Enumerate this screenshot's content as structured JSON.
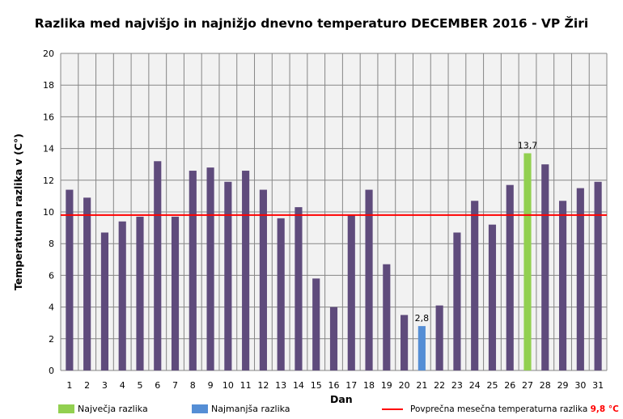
{
  "chart_data": {
    "type": "bar",
    "title": "Razlika med najvišjo in najnižjo dnevno temperaturo DECEMBER 2016 - VP Žiri",
    "xlabel": "Dan",
    "ylabel": "Temperaturna razlika v (C°)",
    "ylim": [
      0,
      20
    ],
    "yticks": [
      0,
      2,
      4,
      6,
      8,
      10,
      12,
      14,
      16,
      18,
      20
    ],
    "grid": true,
    "categories": [
      "1",
      "2",
      "3",
      "4",
      "5",
      "6",
      "7",
      "8",
      "9",
      "10",
      "11",
      "12",
      "13",
      "14",
      "15",
      "16",
      "17",
      "18",
      "19",
      "20",
      "21",
      "22",
      "23",
      "24",
      "25",
      "26",
      "27",
      "28",
      "29",
      "30",
      "31"
    ],
    "values": [
      11.4,
      10.9,
      8.7,
      9.4,
      9.7,
      13.2,
      9.7,
      12.6,
      12.8,
      11.9,
      12.6,
      11.4,
      9.6,
      10.3,
      5.8,
      4.0,
      9.8,
      11.4,
      6.7,
      3.5,
      2.8,
      4.1,
      8.7,
      10.7,
      9.2,
      11.7,
      13.7,
      13.0,
      10.7,
      11.5,
      11.9
    ],
    "max_index": 26,
    "min_index": 20,
    "max_label": "13,7",
    "min_label": "2,8",
    "average": 9.8,
    "colors": {
      "bar": "#5f4b7c",
      "max": "#92d050",
      "min": "#558ed5",
      "average": "#ff0000",
      "plot_bg": "#f2f2f2",
      "grid": "#868686"
    },
    "legend": {
      "max": "Največja razlika",
      "min": "Najmanjša razlika",
      "average": "Povprečna mesečna temperaturna razlika",
      "average_value": "9,8 °C"
    },
    "legend_position": "bottom"
  }
}
